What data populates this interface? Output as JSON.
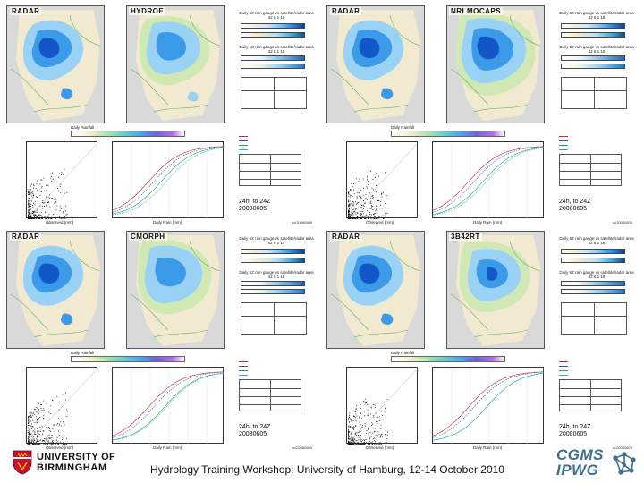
{
  "panels": [
    {
      "left_label": "RADAR",
      "right_label": "HYDROE",
      "side_title_1": "Daily 6Z rain gauge vs satellite/radar area 42 6 1 18",
      "side_title_2": "Daily 6Z rain gauge vs satellite/radar area 42 6 1 18",
      "period_line1": "24h, to 24Z",
      "period_line2": "20080605",
      "scatter_xlabel": "Observed (mm)",
      "cdf_xlabel": "Daily Rain (mm)",
      "code": "rc/20080605",
      "lower_title": "Daily Rainfall"
    },
    {
      "left_label": "RADAR",
      "right_label": "NRLMOCAPS",
      "side_title_1": "Daily 6Z rain gauge vs satellite/radar area 42 6 1 18",
      "side_title_2": "Daily 6Z rain gauge vs satellite/radar area 42 6 1 18",
      "period_line1": "24h, to 24Z",
      "period_line2": "20080605",
      "scatter_xlabel": "Observed (mm)",
      "cdf_xlabel": "Daily Rain (mm)",
      "code": "rc/20080605",
      "lower_title": "Daily Rainfall"
    },
    {
      "left_label": "RADAR",
      "right_label": "CMORPH",
      "side_title_1": "Daily 6Z rain gauge vs satellite/radar area 42 6 1 18",
      "side_title_2": "Daily 6Z rain gauge vs satellite/radar area 42 6 1 18",
      "period_line1": "24h, to 24Z",
      "period_line2": "20080605",
      "scatter_xlabel": "Observed (mm)",
      "cdf_xlabel": "Daily Rain (mm)",
      "code": "rc/20080605",
      "lower_title": "Daily Rainfall"
    },
    {
      "left_label": "RADAR",
      "right_label": "3B42RT",
      "side_title_1": "Daily 6Z rain gauge vs satellite/radar area 42 6 1 18",
      "side_title_2": "Daily 6Z rain gauge vs satellite/radar area 42 6 1 18",
      "period_line1": "24h, to 24Z",
      "period_line2": "20080605",
      "scatter_xlabel": "Observed (mm)",
      "cdf_xlabel": "Daily Rain (mm)",
      "code": "rc/20080605",
      "lower_title": "Daily Rainfall"
    }
  ],
  "footer": {
    "university_line1": "UNIVERSITY OF",
    "university_line2": "BIRMINGHAM",
    "caption": "Hydrology Training Workshop: University of Hamburg, 12-14 October 2010",
    "logo_line1": "CGMS",
    "logo_line2": "IPWG"
  },
  "colors": {
    "rain_light": "#9ad2f5",
    "rain_mid": "#3c9be8",
    "rain_dark": "#1257c7",
    "land": "#f3ecd0",
    "land_green": "#cfe8b4",
    "sea": "#d8d8d8",
    "logo_blue": "#3f6f8f"
  }
}
